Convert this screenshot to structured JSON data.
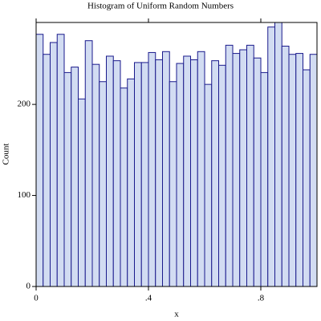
{
  "chart_data": {
    "type": "histogram",
    "title": "Histogram of Uniform Random Numbers",
    "x_label": "x",
    "y_label": "Count",
    "bins": [
      0,
      0.025,
      0.05,
      0.075,
      0.1,
      0.125,
      0.15,
      0.175,
      0.2,
      0.225,
      0.25,
      0.275,
      0.3,
      0.325,
      0.35,
      0.375,
      0.4,
      0.425,
      0.45,
      0.475,
      0.5,
      0.525,
      0.55,
      0.575,
      0.6,
      0.625,
      0.65,
      0.675,
      0.7,
      0.725,
      0.75,
      0.775,
      0.8,
      0.825,
      0.85,
      0.875,
      0.9,
      0.925,
      0.95,
      0.975,
      1
    ],
    "values": [
      277,
      255,
      268,
      277,
      235,
      241,
      206,
      270,
      244,
      225,
      253,
      248,
      218,
      228,
      246,
      246,
      257,
      249,
      258,
      225,
      245,
      253,
      249,
      258,
      222,
      248,
      243,
      265,
      256,
      260,
      265,
      251,
      235,
      285,
      290,
      264,
      255,
      256,
      238,
      255
    ],
    "color": "#d2dcf2",
    "edge_color": "#1a1a8c",
    "xlim": [
      0,
      1
    ],
    "xticks": [
      0,
      {
        "value": 0.4,
        "label": ".4"
      },
      {
        "value": 0.8,
        "label": ".8"
      }
    ],
    "ylim": [
      0,
      290
    ],
    "yticks": [
      0,
      100,
      200
    ]
  }
}
